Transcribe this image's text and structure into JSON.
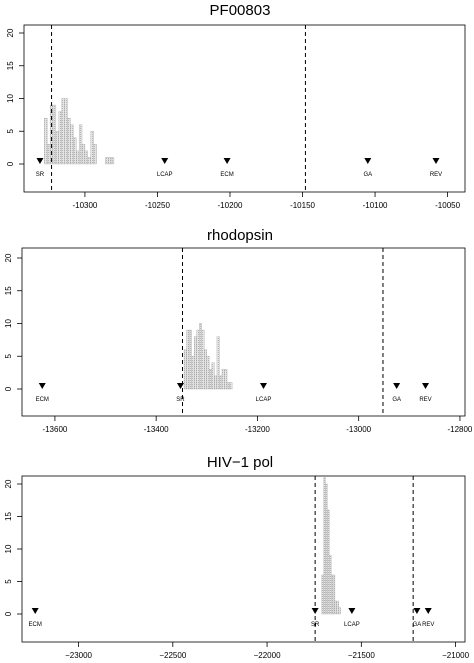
{
  "chart_data": [
    {
      "type": "histogram",
      "title": "PF00803",
      "xlim": [
        -10342,
        -10038
      ],
      "ylim": [
        0,
        20
      ],
      "x_ticks": [
        -10300,
        -10250,
        -10200,
        -10150,
        -10100,
        -10050
      ],
      "x_tick_labels": [
        "-10300",
        "-10250",
        "-10200",
        "-10150",
        "-10100",
        "-10050"
      ],
      "y_ticks": [
        0,
        5,
        10,
        15,
        20
      ],
      "y_tick_labels": [
        "0",
        "5",
        "10",
        "15",
        "20"
      ],
      "bin_width": 2,
      "bin_start": -10328,
      "counts": [
        7,
        3,
        9,
        9,
        5,
        8,
        10,
        10,
        7,
        6,
        4,
        2,
        6,
        3,
        2,
        1,
        5,
        3,
        0,
        0,
        0,
        1,
        1,
        1
      ],
      "dashed_lines": [
        -10323,
        -10148
      ],
      "markers": [
        {
          "label": "SR",
          "x": -10331
        },
        {
          "label": "LCAP",
          "x": -10245
        },
        {
          "label": "ECM",
          "x": -10202
        },
        {
          "label": "GA",
          "x": -10105
        },
        {
          "label": "REV",
          "x": -10058
        }
      ],
      "grid": false,
      "color": "#d9d9d9"
    },
    {
      "type": "histogram",
      "title": "rhodopsin",
      "xlim": [
        -13665,
        -12790
      ],
      "ylim": [
        0,
        20
      ],
      "x_ticks": [
        -13600,
        -13400,
        -13200,
        -13000,
        -12800
      ],
      "x_tick_labels": [
        "-13600",
        "-13400",
        "-13200",
        "-13000",
        "-12800"
      ],
      "y_ticks": [
        0,
        5,
        10,
        15,
        20
      ],
      "y_tick_labels": [
        "0",
        "5",
        "10",
        "15",
        "20"
      ],
      "bin_width": 5,
      "bin_start": -13345,
      "counts": [
        6,
        9,
        9,
        5,
        8,
        9,
        10,
        9,
        6,
        5,
        3,
        4,
        2,
        8,
        2,
        3,
        3,
        1,
        1
      ],
      "dashed_lines": [
        -13348,
        -12952
      ],
      "markers": [
        {
          "label": "ECM",
          "x": -13625
        },
        {
          "label": "SR",
          "x": -13352
        },
        {
          "label": "LCAP",
          "x": -13188
        },
        {
          "label": "GA",
          "x": -12925
        },
        {
          "label": "REV",
          "x": -12868
        }
      ],
      "grid": false,
      "color": "#d9d9d9"
    },
    {
      "type": "histogram",
      "title": "HIV−1 pol",
      "xlim": [
        -23300,
        -20950
      ],
      "ylim": [
        0,
        20
      ],
      "x_ticks": [
        -23000,
        -22500,
        -22000,
        -21500,
        -21000
      ],
      "x_tick_labels": [
        "−23000",
        "−22500",
        "−22000",
        "−21500",
        "−21000"
      ],
      "y_ticks": [
        0,
        5,
        10,
        15,
        20
      ],
      "y_tick_labels": [
        "0",
        "5",
        "10",
        "15",
        "20"
      ],
      "bin_width": 10,
      "bin_start": -21710,
      "counts": [
        6,
        21,
        20,
        16,
        9,
        6,
        6,
        2,
        2,
        1
      ],
      "dashed_lines": [
        -21745,
        -21225
      ],
      "markers": [
        {
          "label": "ECM",
          "x": -23230
        },
        {
          "label": "SR",
          "x": -21745
        },
        {
          "label": "LCAP",
          "x": -21550
        },
        {
          "label": "GA",
          "x": -21205
        },
        {
          "label": "REV",
          "x": -21145
        }
      ],
      "grid": false,
      "color": "#d9d9d9"
    }
  ]
}
